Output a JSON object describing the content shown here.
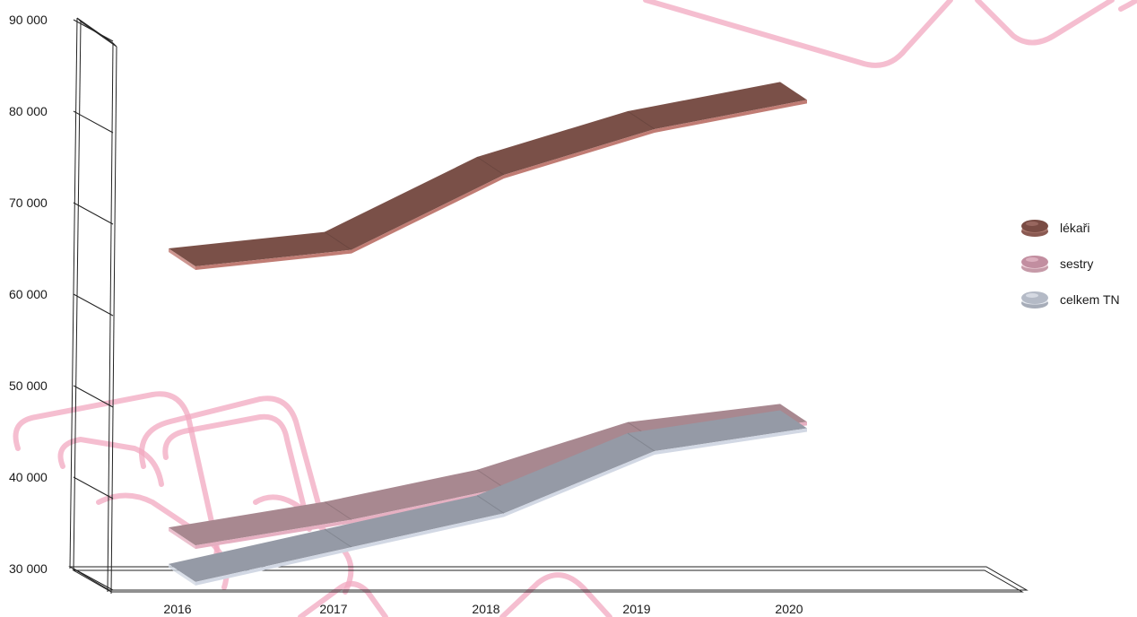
{
  "chart_data": {
    "type": "line",
    "title": "",
    "xlabel": "",
    "ylabel": "",
    "categories": [
      "2016",
      "2017",
      "2018",
      "2019",
      "2020"
    ],
    "ylim": [
      30000,
      90000
    ],
    "yticks": [
      30000,
      40000,
      50000,
      60000,
      70000,
      80000,
      90000
    ],
    "ytick_labels": [
      "30 000",
      "40 000",
      "50 000",
      "60 000",
      "70 000",
      "80 000",
      "90 000"
    ],
    "grid": false,
    "legend": "right",
    "series": [
      {
        "name": "lékaři",
        "values": [
          65000,
          66800,
          75000,
          80000,
          83200
        ],
        "color": "#7a5048",
        "edge": "#c07c74"
      },
      {
        "name": "sestry",
        "values": [
          34500,
          37300,
          40800,
          46000,
          48000
        ],
        "color": "#a88890",
        "edge": "#e6b0c2"
      },
      {
        "name": "celkem TN",
        "values": [
          30500,
          34300,
          38000,
          44800,
          47300
        ],
        "color": "#959aa6",
        "edge": "#d2d8e4"
      }
    ]
  }
}
